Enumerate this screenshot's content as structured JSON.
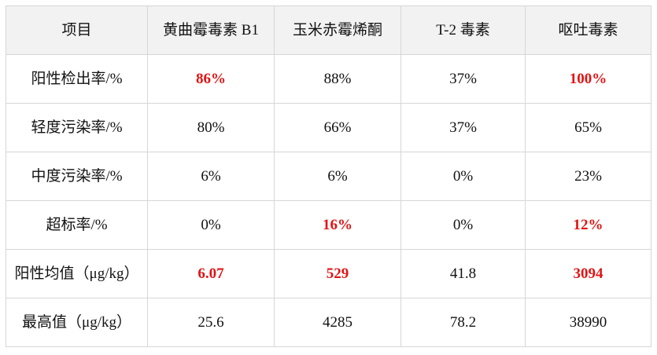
{
  "table": {
    "headers": [
      "项目",
      "黄曲霉毒素 B1",
      "玉米赤霉烯酮",
      "T-2 毒素",
      "呕吐毒素"
    ],
    "rows": [
      {
        "label": "阳性检出率/%",
        "cells": [
          {
            "value": "86%",
            "highlight": true
          },
          {
            "value": "88%",
            "highlight": false
          },
          {
            "value": "37%",
            "highlight": false
          },
          {
            "value": "100%",
            "highlight": true
          }
        ]
      },
      {
        "label": "轻度污染率/%",
        "cells": [
          {
            "value": "80%",
            "highlight": false
          },
          {
            "value": "66%",
            "highlight": false
          },
          {
            "value": "37%",
            "highlight": false
          },
          {
            "value": "65%",
            "highlight": false
          }
        ]
      },
      {
        "label": "中度污染率/%",
        "cells": [
          {
            "value": "6%",
            "highlight": false
          },
          {
            "value": "6%",
            "highlight": false
          },
          {
            "value": "0%",
            "highlight": false
          },
          {
            "value": "23%",
            "highlight": false
          }
        ]
      },
      {
        "label": "超标率/%",
        "cells": [
          {
            "value": "0%",
            "highlight": false
          },
          {
            "value": "16%",
            "highlight": true
          },
          {
            "value": "0%",
            "highlight": false
          },
          {
            "value": "12%",
            "highlight": true
          }
        ]
      },
      {
        "label": "阳性均值（μg/kg）",
        "cells": [
          {
            "value": "6.07",
            "highlight": true
          },
          {
            "value": "529",
            "highlight": true
          },
          {
            "value": "41.8",
            "highlight": false
          },
          {
            "value": "3094",
            "highlight": true
          }
        ]
      },
      {
        "label": "最高值（μg/kg）",
        "cells": [
          {
            "value": "25.6",
            "highlight": false
          },
          {
            "value": "4285",
            "highlight": false
          },
          {
            "value": "78.2",
            "highlight": false
          },
          {
            "value": "38990",
            "highlight": false
          }
        ]
      }
    ]
  },
  "colors": {
    "highlight": "#e01515",
    "text": "#111111",
    "header_background": "#f2f2f2",
    "border": "#d6d6d6"
  }
}
